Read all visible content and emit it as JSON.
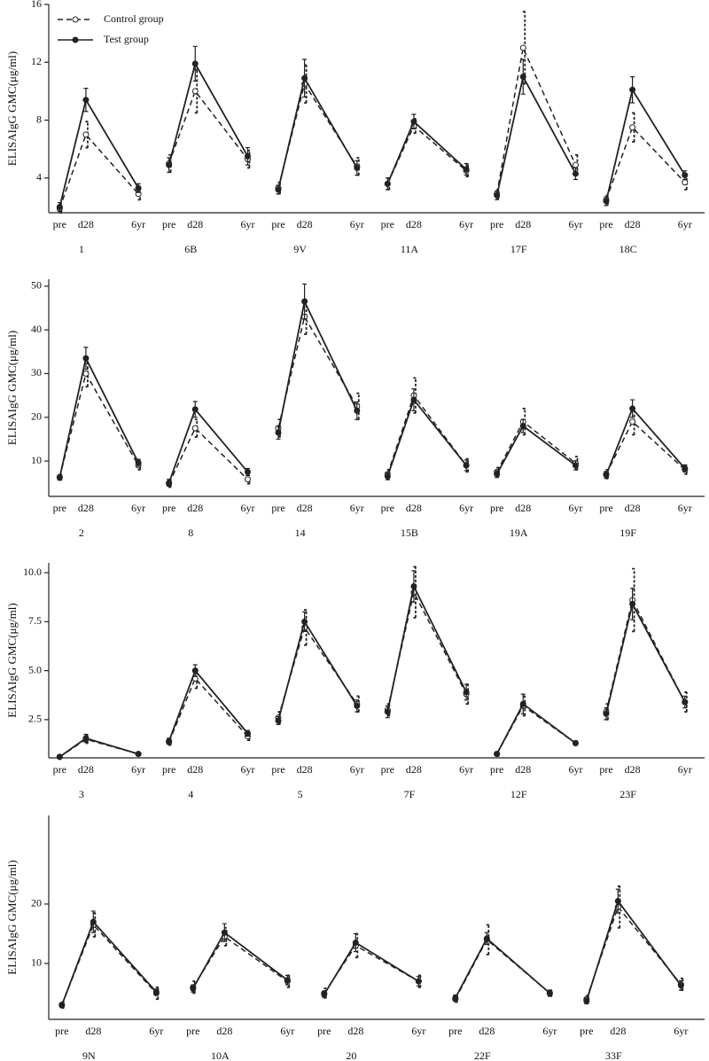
{
  "chart_data": [
    {
      "type": "line",
      "ylabel": "ELISAIgG GMC(μg/ml)",
      "timepoints": [
        "pre",
        "d28",
        "6yr"
      ],
      "groups": [
        "1",
        "6B",
        "9V",
        "11A",
        "17F",
        "18C"
      ],
      "ylim": [
        1.6,
        16
      ],
      "yticks": [
        4,
        8,
        12,
        16
      ],
      "legend": "upper left",
      "series": [
        {
          "name": "Control group",
          "color": "#222222",
          "dash": true,
          "marker": "open",
          "values": [
            [
              1.9,
              7.0,
              2.9
            ],
            [
              5.0,
              10.0,
              5.3
            ],
            [
              3.3,
              10.5,
              4.8
            ],
            [
              3.6,
              7.6,
              4.5
            ],
            [
              2.9,
              13.0,
              4.9
            ],
            [
              2.5,
              7.5,
              3.7
            ]
          ],
          "errors": [
            [
              0.3,
              0.9,
              0.4
            ],
            [
              0.6,
              1.5,
              0.6
            ],
            [
              0.4,
              1.3,
              0.6
            ],
            [
              0.4,
              0.5,
              0.4
            ],
            [
              0.3,
              2.5,
              0.7
            ],
            [
              0.3,
              1.0,
              0.5
            ]
          ]
        },
        {
          "name": "Test group",
          "color": "#222222",
          "dash": false,
          "marker": "filled",
          "values": [
            [
              2.0,
              9.4,
              3.3
            ],
            [
              4.9,
              11.9,
              5.5
            ],
            [
              3.2,
              10.9,
              4.7
            ],
            [
              3.6,
              7.9,
              4.6
            ],
            [
              2.8,
              11.0,
              4.3
            ],
            [
              2.4,
              10.1,
              4.2
            ]
          ],
          "errors": [
            [
              0.3,
              0.8,
              0.3
            ],
            [
              0.5,
              1.2,
              0.6
            ],
            [
              0.3,
              1.3,
              0.5
            ],
            [
              0.4,
              0.5,
              0.4
            ],
            [
              0.3,
              1.2,
              0.4
            ],
            [
              0.3,
              0.9,
              0.3
            ]
          ]
        }
      ]
    },
    {
      "type": "line",
      "ylabel": "ELISAIgG GMC(μg/ml)",
      "timepoints": [
        "pre",
        "d28",
        "6yr"
      ],
      "groups": [
        "2",
        "8",
        "14",
        "15B",
        "19A",
        "19F"
      ],
      "ylim": [
        1.9,
        51.6
      ],
      "yticks": [
        10,
        20,
        30,
        40,
        50
      ],
      "series": [
        {
          "color": "#222222",
          "dash": true,
          "marker": "open",
          "values": [
            [
              6.3,
              30,
              9.0
            ],
            [
              4.8,
              17.5,
              5.8
            ],
            [
              17.5,
              43,
              22.5
            ],
            [
              7.0,
              25,
              9.0
            ],
            [
              7.5,
              19,
              9.5
            ],
            [
              7.0,
              19,
              8.0
            ]
          ],
          "errors": [
            [
              0.6,
              3.0,
              1.0
            ],
            [
              0.8,
              2.0,
              1.0
            ],
            [
              2.0,
              4.0,
              3.0
            ],
            [
              1.0,
              4.0,
              1.5
            ],
            [
              1.0,
              3.0,
              1.5
            ],
            [
              1.0,
              3.0,
              1.0
            ]
          ]
        },
        {
          "color": "#222222",
          "dash": false,
          "marker": "filled",
          "values": [
            [
              6.2,
              33.5,
              9.6
            ],
            [
              5.0,
              21.8,
              7.5
            ],
            [
              16.5,
              46.5,
              21.5
            ],
            [
              6.5,
              24,
              9.0
            ],
            [
              7.0,
              18,
              9.0
            ],
            [
              6.8,
              22,
              8.3
            ]
          ],
          "errors": [
            [
              0.6,
              2.5,
              0.8
            ],
            [
              0.8,
              1.8,
              0.8
            ],
            [
              1.5,
              4.0,
              2.0
            ],
            [
              0.8,
              2.5,
              1.2
            ],
            [
              0.8,
              1.5,
              1.0
            ],
            [
              0.8,
              2.0,
              0.8
            ]
          ]
        }
      ]
    },
    {
      "type": "line",
      "ylabel": "ELISAIgG GMC(μg/ml)",
      "timepoints": [
        "pre",
        "d28",
        "6yr"
      ],
      "groups": [
        "3",
        "4",
        "5",
        "7F",
        "12F",
        "23F"
      ],
      "ylim": [
        0.55,
        10.5
      ],
      "yticks": [
        2.5,
        {
          "value": 5,
          "label": "5.0"
        },
        7.5,
        {
          "value": 10,
          "label": "10.0"
        }
      ],
      "series": [
        {
          "color": "#222222",
          "dash": true,
          "marker": "open",
          "values": [
            [
              0.6,
              1.5,
              0.75
            ],
            [
              1.35,
              4.6,
              1.65
            ],
            [
              2.6,
              7.2,
              3.3
            ],
            [
              3.0,
              9.0,
              3.8
            ],
            [
              0.75,
              3.2,
              1.3
            ],
            [
              2.9,
              8.6,
              3.4
            ]
          ],
          "errors": [
            [
              0.05,
              0.2,
              0.05
            ],
            [
              0.15,
              0.5,
              0.2
            ],
            [
              0.3,
              0.9,
              0.4
            ],
            [
              0.3,
              1.3,
              0.5
            ],
            [
              0.1,
              0.5,
              0.1
            ],
            [
              0.4,
              1.6,
              0.5
            ]
          ]
        },
        {
          "color": "#222222",
          "dash": false,
          "marker": "filled",
          "values": [
            [
              0.6,
              1.55,
              0.75
            ],
            [
              1.4,
              5.0,
              1.8
            ],
            [
              2.45,
              7.5,
              3.2
            ],
            [
              2.9,
              9.3,
              3.9
            ],
            [
              0.75,
              3.3,
              1.3
            ],
            [
              2.8,
              8.4,
              3.4
            ]
          ],
          "errors": [
            [
              0.05,
              0.2,
              0.05
            ],
            [
              0.15,
              0.3,
              0.15
            ],
            [
              0.2,
              0.5,
              0.3
            ],
            [
              0.3,
              0.8,
              0.4
            ],
            [
              0.1,
              0.5,
              0.1
            ],
            [
              0.3,
              0.8,
              0.3
            ]
          ]
        }
      ]
    },
    {
      "type": "line",
      "ylabel": "ELISAIgG GMC(μg/ml)",
      "timepoints": [
        "pre",
        "d28",
        "6yr"
      ],
      "groups": [
        "9N",
        "10A",
        "20",
        "22F",
        "33F"
      ],
      "ylim": [
        0.6,
        34.9
      ],
      "yticks": [
        10,
        20
      ],
      "series": [
        {
          "color": "#222222",
          "dash": true,
          "marker": "open",
          "values": [
            [
              3.0,
              16.5,
              5.0
            ],
            [
              6.0,
              14.5,
              7.0
            ],
            [
              5.0,
              13.0,
              7.0
            ],
            [
              4.0,
              14.0,
              5.0
            ],
            [
              4.0,
              19.5,
              6.5
            ]
          ],
          "errors": [
            [
              0.5,
              2.0,
              1.0
            ],
            [
              1.0,
              1.5,
              1.0
            ],
            [
              0.8,
              2.0,
              1.0
            ],
            [
              0.5,
              2.5,
              0.5
            ],
            [
              0.6,
              3.5,
              1.0
            ]
          ]
        },
        {
          "color": "#222222",
          "dash": false,
          "marker": "filled",
          "values": [
            [
              3.0,
              17.0,
              5.2
            ],
            [
              5.8,
              15.2,
              7.2
            ],
            [
              4.8,
              13.5,
              7.0
            ],
            [
              4.2,
              14.2,
              5.0
            ],
            [
              3.7,
              20.5,
              6.3
            ]
          ],
          "errors": [
            [
              0.4,
              1.8,
              0.5
            ],
            [
              0.6,
              1.5,
              0.8
            ],
            [
              0.5,
              1.5,
              0.8
            ],
            [
              0.5,
              1.0,
              0.5
            ],
            [
              0.5,
              2.0,
              0.8
            ]
          ]
        }
      ]
    }
  ]
}
